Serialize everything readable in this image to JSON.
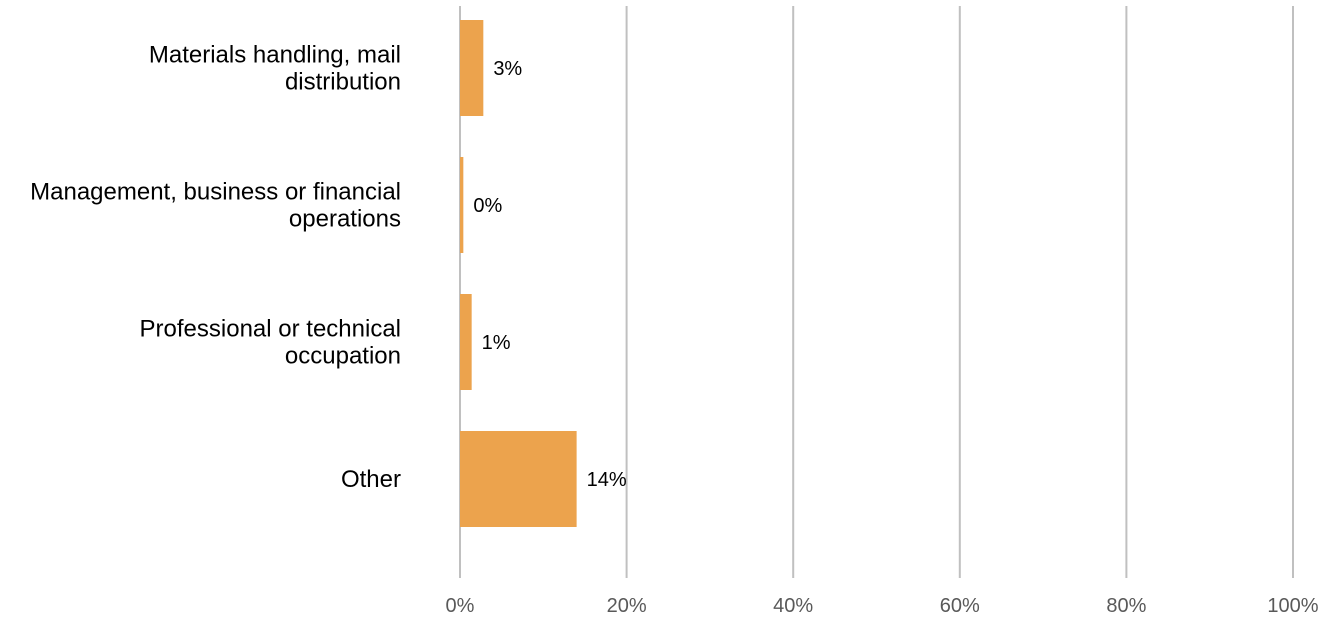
{
  "chart_data": {
    "type": "bar",
    "orientation": "horizontal",
    "title": "",
    "xlabel": "",
    "ylabel": "",
    "categories": [
      [
        "Materials handling, mail",
        "distribution"
      ],
      [
        "Management, business or financial",
        "operations"
      ],
      [
        "Professional or technical",
        "occupation"
      ],
      [
        "Other"
      ]
    ],
    "values": [
      2.8,
      0.4,
      1.4,
      14.0
    ],
    "data_labels": [
      "3%",
      "0%",
      "1%",
      "14%"
    ],
    "xlim": [
      0,
      100
    ],
    "xticks": [
      0,
      20,
      40,
      60,
      80,
      100
    ],
    "xtick_labels": [
      "0%",
      "20%",
      "40%",
      "60%",
      "80%",
      "100%"
    ],
    "grid": "vertical",
    "legend": "none",
    "colors": {
      "bar": "#ECA34D",
      "grid": "#C0C0C0",
      "tick_text": "#595959",
      "label_text": "#000000"
    }
  }
}
